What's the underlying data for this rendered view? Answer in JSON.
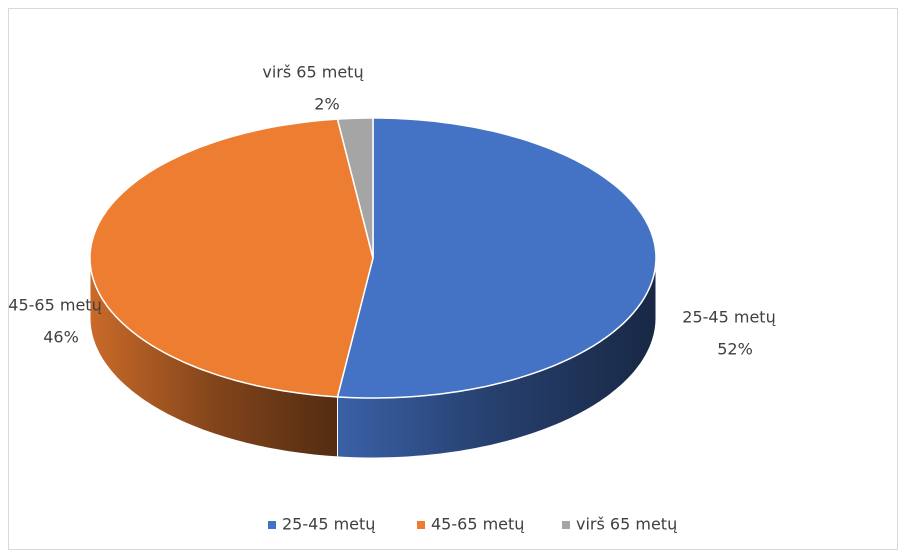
{
  "chart_data": {
    "type": "pie3d",
    "categories": [
      "25-45 metų",
      "45-65 metų",
      "virš 65 metų"
    ],
    "values": [
      52,
      46,
      2
    ],
    "value_labels": [
      "52%",
      "46%",
      "2%"
    ],
    "colors": [
      "#4472c4",
      "#ed7d31",
      "#a5a5a5"
    ],
    "legend": "bottom"
  }
}
